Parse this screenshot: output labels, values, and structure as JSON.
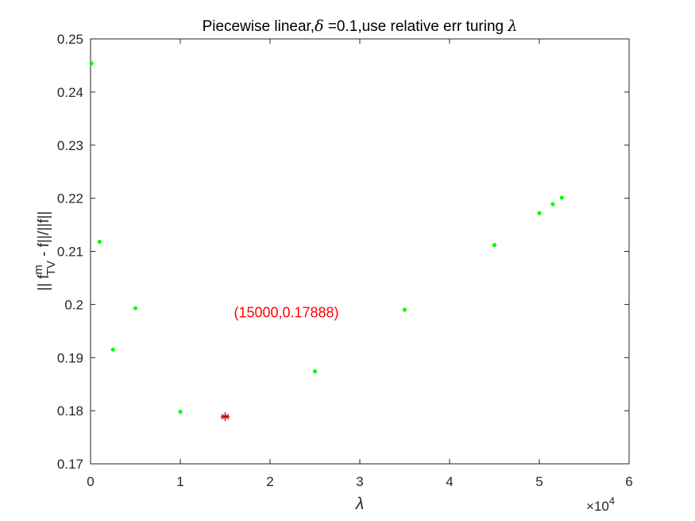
{
  "chart_data": {
    "type": "scatter",
    "title_main": "Piecewise linear,",
    "title_delta": "δ",
    "title_rest": " =0.1,use relative err turing ",
    "title_lambda": "λ",
    "xlabel": "λ",
    "ylabel_prefix": "|| f",
    "ylabel_sup": "m",
    "ylabel_sub": "TV",
    "ylabel_suffix": " - f||/||f||",
    "x_multiplier_times": "×",
    "x_multiplier_base": "10",
    "x_multiplier_exp": "4",
    "xlim": [
      0,
      60000
    ],
    "ylim": [
      0.17,
      0.25
    ],
    "x_ticks": [
      0,
      10000,
      20000,
      30000,
      40000,
      50000,
      60000
    ],
    "x_tick_labels": [
      "0",
      "1",
      "2",
      "3",
      "4",
      "5",
      "6"
    ],
    "y_ticks": [
      0.17,
      0.18,
      0.19,
      0.2,
      0.21,
      0.22,
      0.23,
      0.24,
      0.25
    ],
    "y_tick_labels": [
      "0.17",
      "0.18",
      "0.19",
      "0.2",
      "0.21",
      "0.22",
      "0.23",
      "0.24",
      "0.25"
    ],
    "series": [
      {
        "color": "#00ff00",
        "marker": "dot",
        "x": [
          100,
          1000,
          2500,
          5000,
          10000,
          25000,
          35000,
          45000,
          50000,
          51500,
          52500
        ],
        "y": [
          0.2454,
          0.2118,
          0.1915,
          0.1993,
          0.1798,
          0.1874,
          0.199,
          0.2112,
          0.2172,
          0.2189,
          0.2201
        ]
      }
    ],
    "highlight": {
      "x": 15000,
      "y": 0.17888,
      "color": "#c00000",
      "marker": "asterisk"
    },
    "annotation": {
      "text": "(15000,0.17888)",
      "x": 15000,
      "y": 0.1985,
      "color": "#ff0000"
    },
    "grid": false
  }
}
